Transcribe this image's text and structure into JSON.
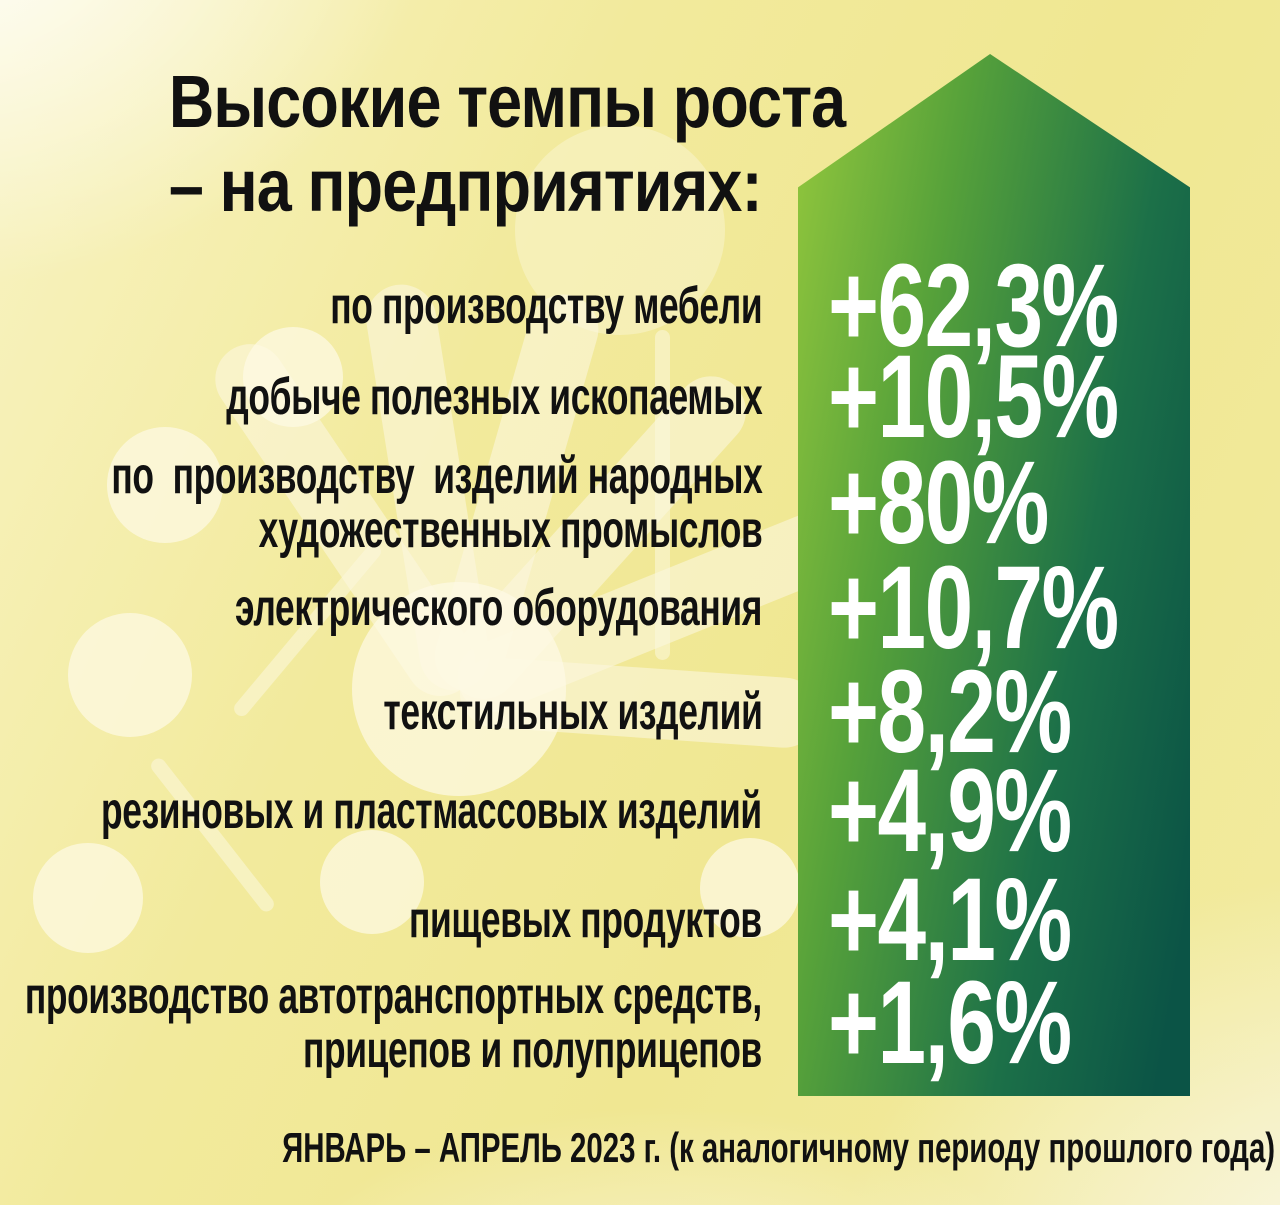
{
  "title": {
    "line1": "Высокие темпы роста",
    "line2": "– на предприятиях:"
  },
  "rows": [
    {
      "lines": [
        "по производству мебели"
      ],
      "value": "+62,3%"
    },
    {
      "lines": [
        "добыче полезных ископаемых"
      ],
      "value": "+10,5%"
    },
    {
      "lines": [
        "по  производству  изделий народных",
        "художественных промыслов"
      ],
      "value": "+80%"
    },
    {
      "lines": [
        "электрического оборудования"
      ],
      "value": "+10,7%"
    },
    {
      "lines": [
        "текстильных изделий"
      ],
      "value": "+8,2%"
    },
    {
      "lines": [
        "резиновых и пластмассовых изделий"
      ],
      "value": "+4,9%"
    },
    {
      "lines": [
        "пищевых продуктов"
      ],
      "value": "+4,1%"
    },
    {
      "lines": [
        "производство автотранспортных средств,",
        "прицепов и полуприцепов"
      ],
      "value": "+1,6%"
    }
  ],
  "footer": {
    "text": "ЯНВАРЬ – АПРЕЛЬ 2023 г. (к аналогичному периоду прошлого года)"
  },
  "colors": {
    "background_yellow": "#f1e99a",
    "arrow_green_light": "#94c83d",
    "arrow_green_dark": "#0b5446",
    "label_text": "#111111",
    "value_text": "#ffffff"
  },
  "chart_data": {
    "type": "table",
    "title": "Высокие темпы роста – на предприятиях:",
    "categories": [
      "по производству мебели",
      "добыче полезных ископаемых",
      "по производству изделий народных художественных промыслов",
      "электрического оборудования",
      "текстильных изделий",
      "резиновых и пластмассовых изделий",
      "пищевых продуктов",
      "производство автотранспортных средств, прицепов и полуприцепов"
    ],
    "values": [
      62.3,
      10.5,
      80,
      10.7,
      8.2,
      4.9,
      4.1,
      1.6
    ],
    "unit": "%",
    "value_labels": [
      "+62,3%",
      "+10,5%",
      "+80%",
      "+10,7%",
      "+8,2%",
      "+4,9%",
      "+4,1%",
      "+1,6%"
    ],
    "footnote": "ЯНВАРЬ – АПРЕЛЬ 2023 г. (к аналогичному периоду прошлого года)"
  }
}
